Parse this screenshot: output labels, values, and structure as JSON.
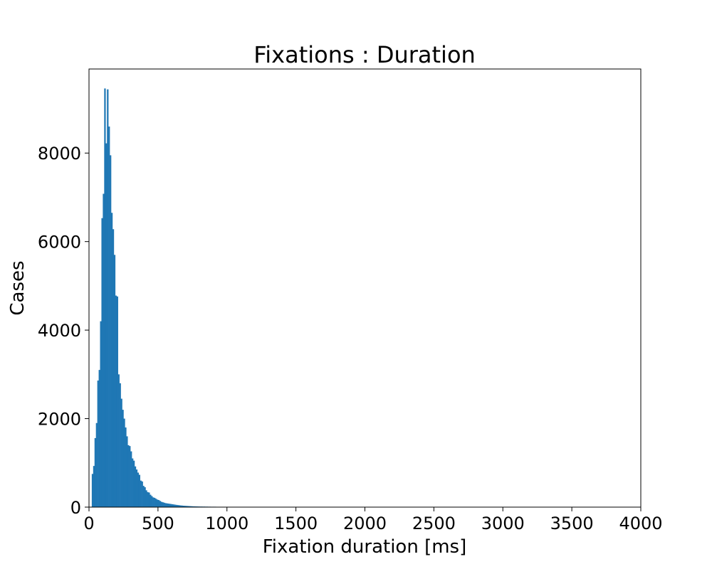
{
  "chart_data": {
    "type": "bar",
    "title": "Fixations : Duration",
    "xlabel": "Fixation duration [ms]",
    "ylabel": "Cases",
    "xlim": [
      0,
      4000
    ],
    "ylim": [
      0,
      9900
    ],
    "xticks": [
      0,
      500,
      1000,
      1500,
      2000,
      2500,
      3000,
      3500,
      4000
    ],
    "yticks": [
      0,
      2000,
      4000,
      6000,
      8000
    ],
    "grid": false,
    "bar_color": "#1f77b4",
    "bin_width": 10,
    "bins_start": [
      20,
      30,
      40,
      50,
      60,
      70,
      80,
      90,
      100,
      110,
      120,
      130,
      140,
      150,
      160,
      170,
      180,
      190,
      200,
      210,
      220,
      230,
      240,
      250,
      260,
      270,
      280,
      290,
      300,
      310,
      320,
      330,
      340,
      350,
      360,
      370,
      380,
      390,
      400,
      410,
      420,
      430,
      440,
      450,
      460,
      470,
      480,
      490,
      500,
      510,
      520,
      530,
      540,
      550,
      560,
      570,
      580,
      590,
      600,
      610,
      620,
      630,
      640,
      650,
      660,
      670,
      680,
      690,
      700,
      710,
      720,
      730,
      740,
      750,
      760,
      770,
      780,
      790,
      800,
      820,
      840,
      860,
      880,
      900,
      920,
      940,
      960,
      980,
      1000,
      1020,
      1040,
      1060,
      1080,
      1100,
      1120,
      1140,
      1160
    ],
    "values": [
      750,
      930,
      1560,
      1900,
      2860,
      3100,
      4200,
      6530,
      7080,
      9460,
      8220,
      9440,
      8600,
      7950,
      6650,
      6280,
      5700,
      4780,
      4760,
      3000,
      2800,
      2450,
      2200,
      2000,
      1800,
      1600,
      1400,
      1380,
      1260,
      1100,
      1050,
      920,
      850,
      780,
      730,
      600,
      580,
      480,
      450,
      380,
      340,
      330,
      280,
      250,
      220,
      210,
      190,
      170,
      160,
      140,
      120,
      110,
      100,
      90,
      85,
      80,
      75,
      70,
      65,
      60,
      55,
      50,
      46,
      42,
      38,
      35,
      32,
      30,
      28,
      26,
      24,
      22,
      20,
      18,
      17,
      16,
      15,
      14,
      13,
      12,
      11,
      10,
      9,
      9,
      8,
      8,
      7,
      7,
      6,
      6,
      5,
      5,
      4,
      4,
      4,
      3,
      3
    ]
  }
}
